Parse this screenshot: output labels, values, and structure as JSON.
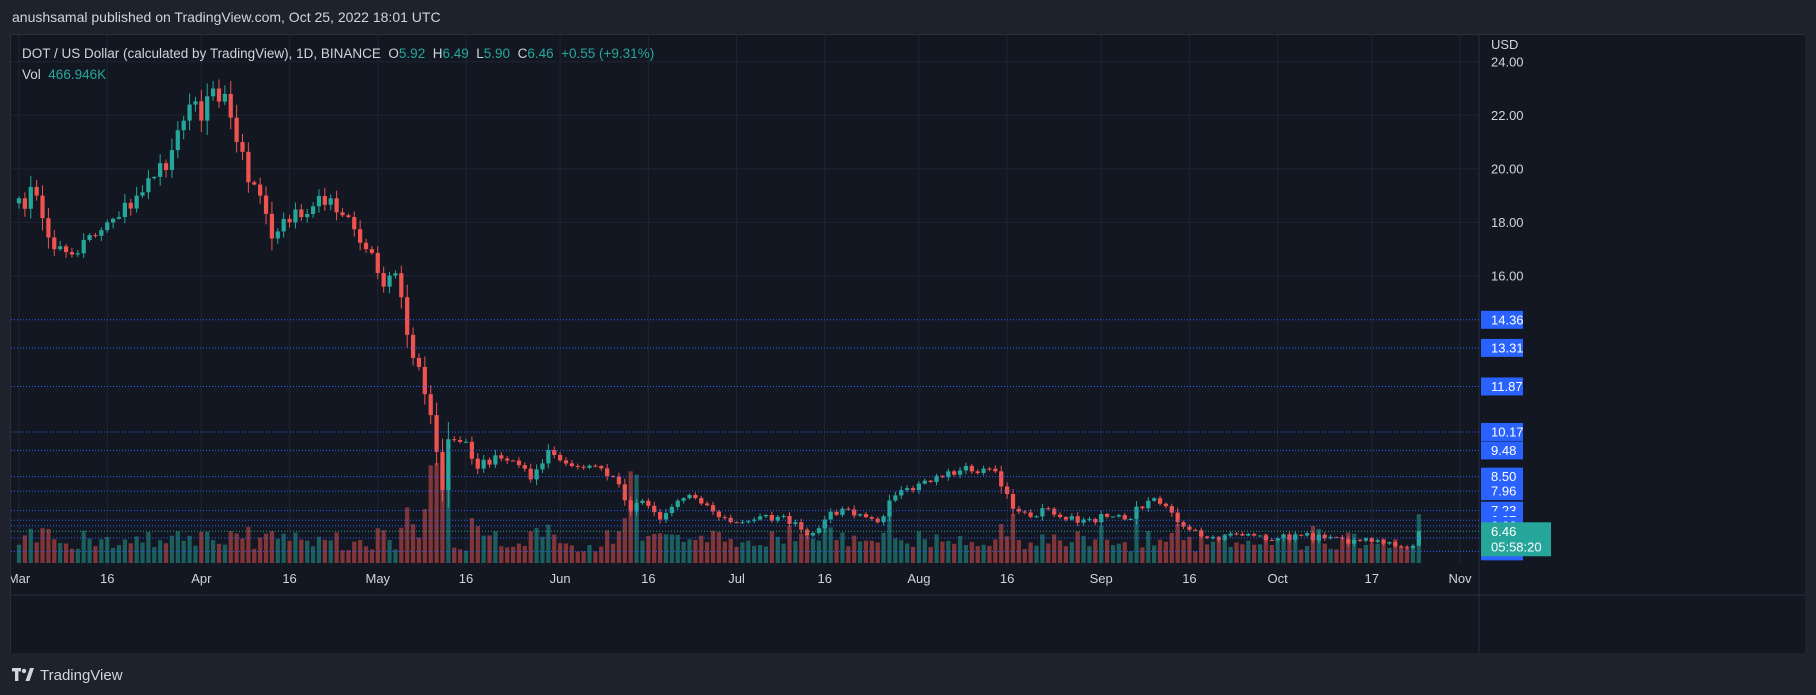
{
  "header": {
    "publisher": "anushsamal published on TradingView.com, Oct 25, 2022 18:01 UTC"
  },
  "legend": {
    "symbol": "DOT / US Dollar (calculated by TradingView), 1D, BINANCE",
    "open_label": "O",
    "open": "5.92",
    "high_label": "H",
    "high": "6.49",
    "low_label": "L",
    "low": "5.90",
    "close_label": "C",
    "close": "6.46",
    "change": "+0.55 (+9.31%)",
    "vol_label": "Vol",
    "vol": "466.946K"
  },
  "footer": {
    "brand": "TradingView",
    "logo_icon": "tradingview-logo-icon"
  },
  "colors": {
    "background": "#131722",
    "frame": "#1e222d",
    "up": "#26a69a",
    "down": "#ef5350",
    "level_line": "#2962ff",
    "level_badge": "#2962ff",
    "price_badge": "#26a69a",
    "grid": "#1f2431",
    "text": "#d1d4dc"
  },
  "chart_data": {
    "type": "candlestick",
    "y_unit": "USD",
    "ylim": [
      5.2,
      25.0
    ],
    "y_ticks": [
      "24.00",
      "22.00",
      "20.00",
      "18.00",
      "16.00"
    ],
    "x_ticks": [
      "Mar",
      "16",
      "Apr",
      "16",
      "May",
      "16",
      "Jun",
      "16",
      "Jul",
      "16",
      "Aug",
      "16",
      "Sep",
      "16",
      "Oct",
      "17",
      "Nov"
    ],
    "x_range": [
      "2022-03-01",
      "2022-11-01"
    ],
    "grid": true,
    "price_levels": [
      "14.36",
      "13.31",
      "11.87",
      "10.17",
      "9.48",
      "8.50",
      "7.96",
      "7.23",
      "6.87",
      "6.66",
      "6.21",
      "5.71"
    ],
    "last_price": "6.46",
    "countdown": "05:58:20",
    "close_anchors": [
      [
        "2022-03-01",
        18.9
      ],
      [
        "2022-03-04",
        19.0
      ],
      [
        "2022-03-07",
        17.0
      ],
      [
        "2022-03-10",
        16.8
      ],
      [
        "2022-03-14",
        17.5
      ],
      [
        "2022-03-18",
        18.2
      ],
      [
        "2022-03-21",
        19.0
      ],
      [
        "2022-03-24",
        19.7
      ],
      [
        "2022-03-27",
        20.7
      ],
      [
        "2022-03-30",
        22.4
      ],
      [
        "2022-04-01",
        21.8
      ],
      [
        "2022-04-03",
        23.0
      ],
      [
        "2022-04-05",
        22.8
      ],
      [
        "2022-04-07",
        21.0
      ],
      [
        "2022-04-09",
        19.5
      ],
      [
        "2022-04-11",
        19.0
      ],
      [
        "2022-04-13",
        17.4
      ],
      [
        "2022-04-16",
        18.0
      ],
      [
        "2022-04-20",
        18.6
      ],
      [
        "2022-04-23",
        18.9
      ],
      [
        "2022-04-26",
        18.2
      ],
      [
        "2022-04-29",
        17.0
      ],
      [
        "2022-05-02",
        15.6
      ],
      [
        "2022-05-04",
        16.1
      ],
      [
        "2022-05-06",
        13.8
      ],
      [
        "2022-05-08",
        12.6
      ],
      [
        "2022-05-10",
        10.8
      ],
      [
        "2022-05-12",
        8.0
      ],
      [
        "2022-05-13",
        9.9
      ],
      [
        "2022-05-16",
        9.8
      ],
      [
        "2022-05-18",
        8.8
      ],
      [
        "2022-05-21",
        9.3
      ],
      [
        "2022-05-24",
        9.1
      ],
      [
        "2022-05-27",
        8.4
      ],
      [
        "2022-05-30",
        9.5
      ],
      [
        "2022-06-03",
        8.9
      ],
      [
        "2022-06-07",
        8.9
      ],
      [
        "2022-06-10",
        8.5
      ],
      [
        "2022-06-13",
        7.2
      ],
      [
        "2022-06-15",
        7.6
      ],
      [
        "2022-06-18",
        6.9
      ],
      [
        "2022-06-21",
        7.6
      ],
      [
        "2022-06-24",
        7.7
      ],
      [
        "2022-06-27",
        7.2
      ],
      [
        "2022-06-30",
        6.8
      ],
      [
        "2022-07-04",
        6.9
      ],
      [
        "2022-07-08",
        7.0
      ],
      [
        "2022-07-11",
        6.8
      ],
      [
        "2022-07-13",
        6.3
      ],
      [
        "2022-07-16",
        6.9
      ],
      [
        "2022-07-19",
        7.3
      ],
      [
        "2022-07-22",
        7.1
      ],
      [
        "2022-07-25",
        6.8
      ],
      [
        "2022-07-28",
        7.8
      ],
      [
        "2022-07-31",
        8.0
      ],
      [
        "2022-08-03",
        8.3
      ],
      [
        "2022-08-06",
        8.7
      ],
      [
        "2022-08-09",
        8.9
      ],
      [
        "2022-08-12",
        8.8
      ],
      [
        "2022-08-14",
        8.7
      ],
      [
        "2022-08-17",
        7.3
      ],
      [
        "2022-08-20",
        7.0
      ],
      [
        "2022-08-23",
        7.3
      ],
      [
        "2022-08-26",
        6.9
      ],
      [
        "2022-08-29",
        6.9
      ],
      [
        "2022-09-02",
        7.0
      ],
      [
        "2022-09-05",
        6.9
      ],
      [
        "2022-09-09",
        7.6
      ],
      [
        "2022-09-12",
        7.4
      ],
      [
        "2022-09-14",
        6.8
      ],
      [
        "2022-09-17",
        6.5
      ],
      [
        "2022-09-19",
        6.2
      ],
      [
        "2022-09-22",
        6.3
      ],
      [
        "2022-09-25",
        6.3
      ],
      [
        "2022-09-28",
        6.3
      ],
      [
        "2022-10-01",
        6.2
      ],
      [
        "2022-10-05",
        6.3
      ],
      [
        "2022-10-09",
        6.2
      ],
      [
        "2022-10-13",
        6.0
      ],
      [
        "2022-10-16",
        6.2
      ],
      [
        "2022-10-19",
        6.0
      ],
      [
        "2022-10-21",
        5.9
      ],
      [
        "2022-10-24",
        5.92
      ],
      [
        "2022-10-25",
        6.46
      ]
    ],
    "volume_note": "volume histogram at bottom, green on up days, red on down days"
  }
}
